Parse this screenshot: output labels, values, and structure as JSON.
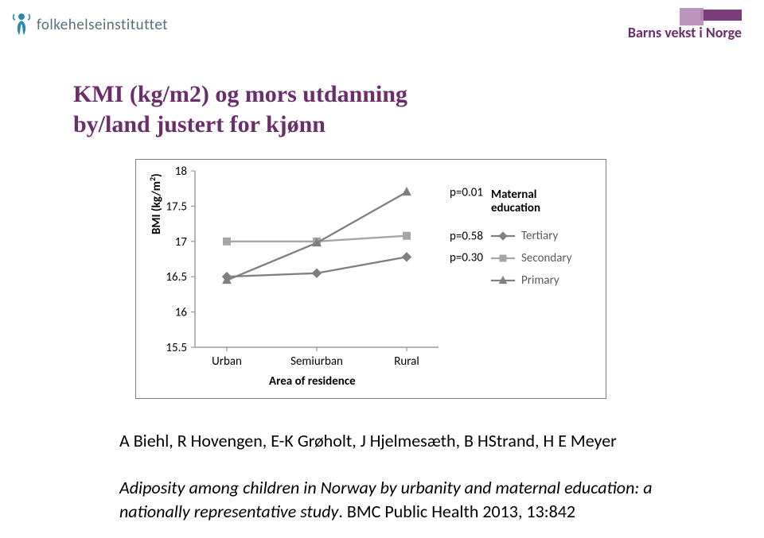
{
  "brand_left": "folkehelseinstituttet",
  "brand_left_color": "#5e6c7a",
  "brand_left_accent": "#2a8aa8",
  "brand_right": "Barns vekst i Norge",
  "brand_right_color": "#6a2e6a",
  "brand_right_block1": "#7a3d7a",
  "brand_right_block2": "#b58ab5",
  "title_line1": "KMI (kg/m2) og mors utdanning",
  "title_line2": "by/land justert for kjønn",
  "title_color": "#6a2e6a",
  "title_fontsize": 30,
  "chart": {
    "type": "line",
    "y_axis_title": "BMI (kg/m²)",
    "x_axis_title": "Area of residence",
    "ylim": [
      15.5,
      18
    ],
    "yticks": [
      15.5,
      16,
      16.5,
      17,
      17.5,
      18
    ],
    "ytick_labels": [
      "15.5",
      "16",
      "16.5",
      "17",
      "17.5",
      "18"
    ],
    "categories": [
      "Urban",
      "Semiurban",
      "Rural"
    ],
    "legend_title": "Maternal education",
    "series": [
      {
        "name": "Tertiary",
        "marker": "diamond",
        "color": "#7f7f7f",
        "values": [
          16.5,
          16.55,
          16.78
        ],
        "p_label": "p=0.30"
      },
      {
        "name": "Secondary",
        "marker": "square",
        "color": "#a6a6a6",
        "values": [
          17.0,
          17.0,
          17.08
        ],
        "p_label": "p=0.58"
      },
      {
        "name": "Primary",
        "marker": "triangle",
        "color": "#7f7f7f",
        "values": [
          16.45,
          16.98,
          17.7
        ],
        "p_label": "p=0.01"
      }
    ],
    "label_fontsize": 15,
    "axis_color": "#868686",
    "series_line_width": 2.3,
    "marker_size": 10,
    "legend_label_color": "#595959"
  },
  "citation": {
    "authors": "A Biehl, R Hovengen, E-K Grøholt, J Hjelmesæth, B HStrand,  H E Meyer",
    "study_title": "Adiposity among children in Norway by urbanity and maternal education: a nationally representative study",
    "journal": ". BMC Public Health 2013, 13:842"
  }
}
